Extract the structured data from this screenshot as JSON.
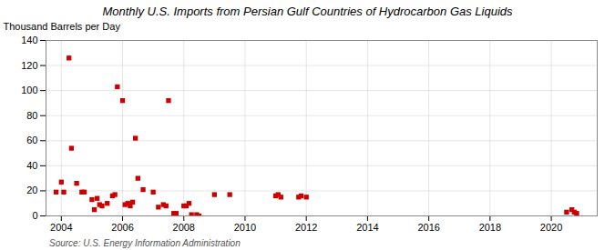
{
  "chart_data": {
    "type": "scatter",
    "title": "Monthly U.S. Imports from Persian Gulf Countries of Hydrocarbon Gas Liquids",
    "ylabel": "Thousand Barrels per Day",
    "source": "Source: U.S. Energy Information Administration",
    "color": "#cc0000",
    "marker": "square",
    "grid": true,
    "xlim": [
      2003.5,
      2021.5
    ],
    "xticks": [
      2004,
      2006,
      2008,
      2010,
      2012,
      2014,
      2016,
      2018,
      2020
    ],
    "ylim": [
      0,
      140
    ],
    "yticks": [
      0,
      20,
      40,
      60,
      80,
      100,
      120,
      140
    ],
    "x": [
      2003.83,
      2004.0,
      2004.08,
      2004.25,
      2004.33,
      2004.5,
      2004.67,
      2004.75,
      2005.0,
      2005.08,
      2005.17,
      2005.25,
      2005.33,
      2005.5,
      2005.67,
      2005.75,
      2005.83,
      2006.0,
      2006.08,
      2006.17,
      2006.25,
      2006.33,
      2006.42,
      2006.5,
      2006.67,
      2007.0,
      2007.17,
      2007.33,
      2007.42,
      2007.5,
      2007.67,
      2007.75,
      2008.0,
      2008.08,
      2008.17,
      2008.25,
      2008.42,
      2008.5,
      2009.0,
      2009.5,
      2011.0,
      2011.08,
      2011.17,
      2011.75,
      2011.83,
      2012.0,
      2020.5,
      2020.67,
      2020.75,
      2020.83
    ],
    "values": [
      19,
      27,
      19,
      126,
      54,
      26,
      19,
      19,
      13,
      5,
      14,
      9,
      8,
      10,
      16,
      17,
      103,
      92,
      9,
      10,
      8,
      11,
      62,
      30,
      21,
      19,
      7,
      9,
      8,
      92,
      2,
      2,
      8,
      8,
      10,
      1,
      1,
      0,
      17,
      17,
      16,
      17,
      15,
      15,
      16,
      15,
      3,
      5,
      3,
      2
    ]
  }
}
